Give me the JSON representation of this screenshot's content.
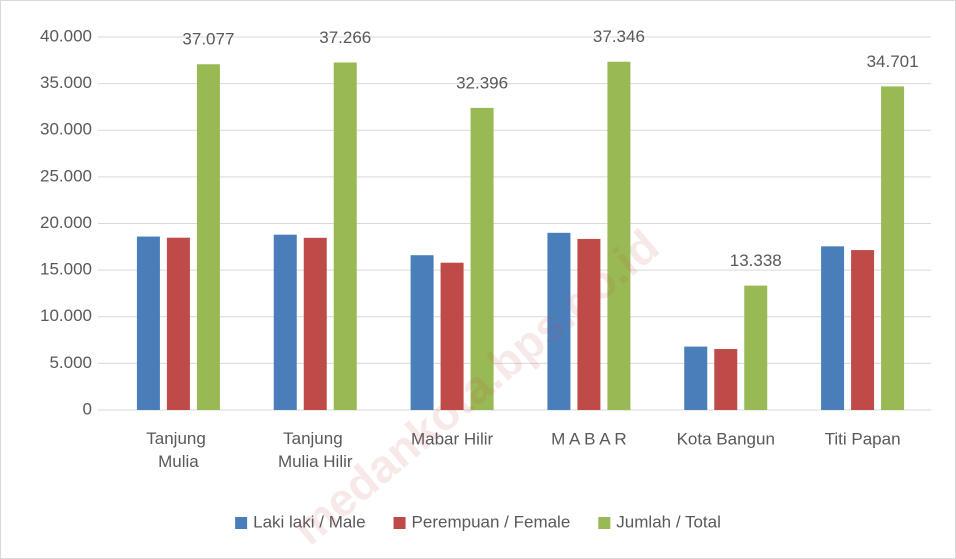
{
  "chart_data": {
    "type": "bar",
    "categories": [
      "Tanjung Mulia",
      "Tanjung Mulia Hilir",
      "Mabar Hilir",
      "M A B A R",
      "Kota Bangun",
      "Titi Papan"
    ],
    "series": [
      {
        "name": "Laki laki / Male",
        "color": "#4a7ebb",
        "values": [
          18600,
          18800,
          16600,
          19000,
          6800,
          17550
        ]
      },
      {
        "name": "Perempuan / Female",
        "color": "#be4b48",
        "values": [
          18477,
          18466,
          15796,
          18346,
          6538,
          17151
        ]
      },
      {
        "name": "Jumlah / Total",
        "color": "#98b954",
        "values": [
          37077,
          37266,
          32396,
          37346,
          13338,
          34701
        ],
        "value_labels": [
          "37.077",
          "37.266",
          "32.396",
          "37.346",
          "13.338",
          "34.701"
        ]
      }
    ],
    "ylim": [
      0,
      40000
    ],
    "yticks": [
      0,
      {
        "value": 5000,
        "label": "5.000"
      },
      {
        "value": 10000,
        "label": "10.000"
      },
      {
        "value": 15000,
        "label": "15.000"
      },
      {
        "value": 20000,
        "label": "20.000"
      },
      {
        "value": 25000,
        "label": "25.000"
      },
      {
        "value": 30000,
        "label": "30.000"
      },
      {
        "value": 35000,
        "label": "35.000"
      },
      {
        "value": 40000,
        "label": "40.000"
      }
    ],
    "grid": true,
    "legend": "bottom",
    "watermark": "medankota.bps.go.id"
  }
}
